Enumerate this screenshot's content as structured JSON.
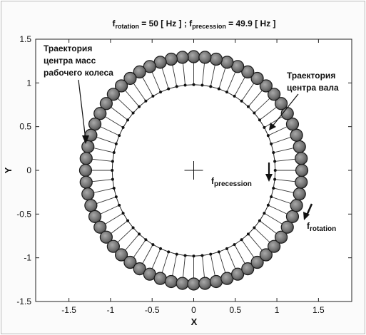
{
  "chart_data": {
    "type": "scatter",
    "title_parts": [
      "f",
      "rotation",
      " = 50 [ Hz ] ; f",
      "precession",
      " = 49.9 [ Hz ]"
    ],
    "xlabel": "X",
    "ylabel": "Y",
    "xlim": [
      -1.9,
      1.9
    ],
    "ylim": [
      -1.5,
      1.5
    ],
    "xticks": [
      "-1.5",
      "-1",
      "-0.5",
      "0",
      "0.5",
      "1",
      "1.5"
    ],
    "yticks": [
      "1.5",
      "1",
      "0.5",
      "0",
      "-0.5",
      "-1",
      "-1.5"
    ],
    "grid": false,
    "series": [
      {
        "name": "Траектория центра масс рабочего колеса",
        "shape": "circle",
        "center": [
          0,
          0
        ],
        "radius_x": 1.3,
        "radius_y": 1.3,
        "points": 60,
        "marker": "large shaded circle"
      },
      {
        "name": "Траектория центра вала",
        "shape": "circle",
        "center": [
          0,
          0
        ],
        "radius_x": 0.98,
        "radius_y": 0.98,
        "points": 60,
        "marker": "small dot"
      }
    ],
    "center_marker": {
      "x": 0,
      "y": 0,
      "symbol": "+"
    },
    "annotations": {
      "impeller_lines": [
        "Траектория",
        "центра масс",
        "рабочего колеса"
      ],
      "shaft_lines": [
        "Траектория",
        "центра вала"
      ],
      "f_precession": [
        "f",
        "precession"
      ],
      "f_rotation": [
        "f",
        "rotation"
      ]
    }
  }
}
